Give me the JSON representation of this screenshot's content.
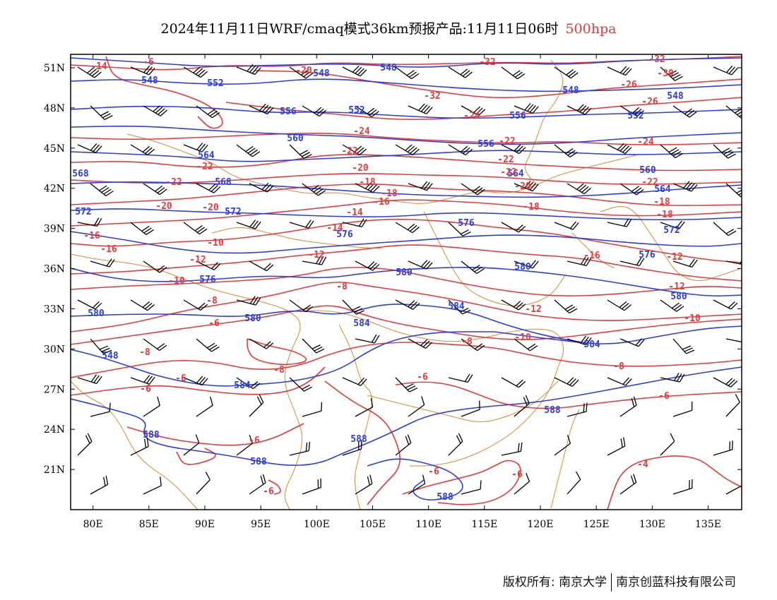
{
  "title": {
    "main": "2024年11月11日WRF/cmaq模式36km预报产品:11月11日06时",
    "level": "500hpa",
    "level_color": "#e8393b"
  },
  "axes": {
    "lat_labels": [
      "51N",
      "48N",
      "45N",
      "42N",
      "39N",
      "36N",
      "33N",
      "30N",
      "27N",
      "24N",
      "21N"
    ],
    "lon_labels": [
      "80E",
      "85E",
      "90E",
      "95E",
      "100E",
      "105E",
      "110E",
      "115E",
      "120E",
      "125E",
      "130E",
      "135E"
    ]
  },
  "chart_data": {
    "type": "map",
    "region": {
      "lon_range": [
        78,
        138
      ],
      "lat_range": [
        18,
        52
      ]
    },
    "height_contours_dagpm": {
      "color": "#2b3de3",
      "levels": [
        548,
        552,
        556,
        560,
        564,
        568,
        572,
        576,
        580,
        584,
        588
      ],
      "labels": [
        "548",
        "552",
        "556",
        "560",
        "564",
        "568",
        "572",
        "576",
        "580",
        "584",
        "588"
      ]
    },
    "temperature_contours_c": {
      "color": "#e8393b",
      "levels": [
        -32,
        -30,
        -28,
        -26,
        -24,
        -22,
        -20,
        -18,
        -16,
        -14,
        -12,
        -10,
        -8,
        -6,
        -4
      ],
      "labels": [
        "-32",
        "-30",
        "-28",
        "-26",
        "-24",
        "-22",
        "-20",
        "-18",
        "-16",
        "-14",
        "-12",
        "-10",
        "-8",
        "-6",
        "-4"
      ]
    },
    "wind_barbs": {
      "color": "#000000"
    },
    "boundaries": {
      "color": "#d98b3a"
    }
  },
  "credit": {
    "owner": "版权所有: 南京大学",
    "company": "南京创蓝科技有限公司"
  }
}
